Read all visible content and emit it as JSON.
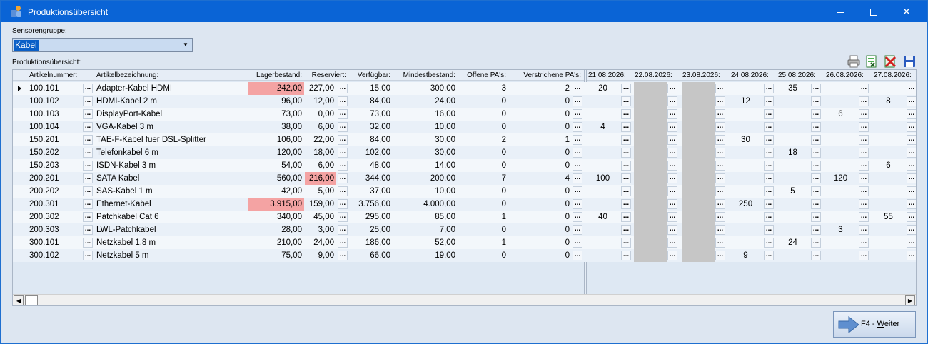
{
  "window": {
    "title": "Produktionsübersicht",
    "icons": [
      "app-icon",
      "minimize-icon",
      "maximize-icon",
      "close-icon"
    ]
  },
  "sensor_group": {
    "label": "Sensorengruppe:",
    "value": "Kabel"
  },
  "overview": {
    "label": "Produktionsübersicht:"
  },
  "toolbar": {
    "icons": [
      "print-icon",
      "excel-export-icon",
      "excel-delete-icon",
      "save-icon"
    ]
  },
  "grid": {
    "columns": [
      "Artikelnummer:",
      "Artikelbezeichnung:",
      "Lagerbestand:",
      "Reserviert:",
      "Verfügbar:",
      "Mindestbestand:",
      "Offene PA's:",
      "Verstrichene PA's:"
    ],
    "date_columns": [
      "21.08.2026:",
      "22.08.2026:",
      "23.08.2026:",
      "24.08.2026:",
      "25.08.2026:",
      "26.08.2026:",
      "27.08.2026:"
    ],
    "dots": "...",
    "rows": [
      {
        "nr": "100.101",
        "name": "Adapter-Kabel HDMI",
        "lager": "242,00",
        "res": "227,00",
        "verf": "15,00",
        "mind": "300,00",
        "offen": "3",
        "verstr": "2",
        "d": [
          "20",
          "",
          "",
          "",
          "35",
          "",
          ""
        ],
        "hl_lager": true,
        "hl_res": false
      },
      {
        "nr": "100.102",
        "name": "HDMI-Kabel 2 m",
        "lager": "96,00",
        "res": "12,00",
        "verf": "84,00",
        "mind": "24,00",
        "offen": "0",
        "verstr": "0",
        "d": [
          "",
          "",
          "",
          "12",
          "",
          "",
          "8"
        ],
        "hl_lager": false,
        "hl_res": false
      },
      {
        "nr": "100.103",
        "name": "DisplayPort-Kabel",
        "lager": "73,00",
        "res": "0,00",
        "verf": "73,00",
        "mind": "16,00",
        "offen": "0",
        "verstr": "0",
        "d": [
          "",
          "",
          "",
          "",
          "",
          "6",
          ""
        ],
        "hl_lager": false,
        "hl_res": false
      },
      {
        "nr": "100.104",
        "name": "VGA-Kabel 3 m",
        "lager": "38,00",
        "res": "6,00",
        "verf": "32,00",
        "mind": "10,00",
        "offen": "0",
        "verstr": "0",
        "d": [
          "4",
          "",
          "",
          "",
          "",
          "",
          ""
        ],
        "hl_lager": false,
        "hl_res": false
      },
      {
        "nr": "150.201",
        "name": "TAE-F-Kabel fuer DSL-Splitter",
        "lager": "106,00",
        "res": "22,00",
        "verf": "84,00",
        "mind": "30,00",
        "offen": "2",
        "verstr": "1",
        "d": [
          "",
          "",
          "",
          "30",
          "",
          "",
          ""
        ],
        "hl_lager": false,
        "hl_res": false
      },
      {
        "nr": "150.202",
        "name": "Telefonkabel 6 m",
        "lager": "120,00",
        "res": "18,00",
        "verf": "102,00",
        "mind": "30,00",
        "offen": "0",
        "verstr": "0",
        "d": [
          "",
          "",
          "",
          "",
          "18",
          "",
          ""
        ],
        "hl_lager": false,
        "hl_res": false
      },
      {
        "nr": "150.203",
        "name": "ISDN-Kabel 3 m",
        "lager": "54,00",
        "res": "6,00",
        "verf": "48,00",
        "mind": "14,00",
        "offen": "0",
        "verstr": "0",
        "d": [
          "",
          "",
          "",
          "",
          "",
          "",
          "6"
        ],
        "hl_lager": false,
        "hl_res": false
      },
      {
        "nr": "200.201",
        "name": "SATA Kabel",
        "lager": "560,00",
        "res": "216,00",
        "verf": "344,00",
        "mind": "200,00",
        "offen": "7",
        "verstr": "4",
        "d": [
          "100",
          "",
          "",
          "",
          "",
          "120",
          ""
        ],
        "hl_lager": false,
        "hl_res": true
      },
      {
        "nr": "200.202",
        "name": "SAS-Kabel 1 m",
        "lager": "42,00",
        "res": "5,00",
        "verf": "37,00",
        "mind": "10,00",
        "offen": "0",
        "verstr": "0",
        "d": [
          "",
          "",
          "",
          "",
          "5",
          "",
          ""
        ],
        "hl_lager": false,
        "hl_res": false
      },
      {
        "nr": "200.301",
        "name": "Ethernet-Kabel",
        "lager": "3.915,00",
        "res": "159,00",
        "verf": "3.756,00",
        "mind": "4.000,00",
        "offen": "0",
        "verstr": "0",
        "d": [
          "",
          "",
          "",
          "250",
          "",
          "",
          ""
        ],
        "hl_lager": true,
        "hl_res": false
      },
      {
        "nr": "200.302",
        "name": "Patchkabel Cat 6",
        "lager": "340,00",
        "res": "45,00",
        "verf": "295,00",
        "mind": "85,00",
        "offen": "1",
        "verstr": "0",
        "d": [
          "40",
          "",
          "",
          "",
          "",
          "",
          "55"
        ],
        "hl_lager": false,
        "hl_res": false
      },
      {
        "nr": "200.303",
        "name": "LWL-Patchkabel",
        "lager": "28,00",
        "res": "3,00",
        "verf": "25,00",
        "mind": "7,00",
        "offen": "0",
        "verstr": "0",
        "d": [
          "",
          "",
          "",
          "",
          "",
          "3",
          ""
        ],
        "hl_lager": false,
        "hl_res": false
      },
      {
        "nr": "300.101",
        "name": "Netzkabel 1,8 m",
        "lager": "210,00",
        "res": "24,00",
        "verf": "186,00",
        "mind": "52,00",
        "offen": "1",
        "verstr": "0",
        "d": [
          "",
          "",
          "",
          "",
          "24",
          "",
          ""
        ],
        "hl_lager": false,
        "hl_res": false
      },
      {
        "nr": "300.102",
        "name": "Netzkabel 5 m",
        "lager": "75,00",
        "res": "9,00",
        "verf": "66,00",
        "mind": "19,00",
        "offen": "0",
        "verstr": "0",
        "d": [
          "",
          "",
          "",
          "9",
          "",
          "",
          ""
        ],
        "hl_lager": false,
        "hl_res": false
      }
    ]
  },
  "buttons": {
    "next_prefix": "F4 - ",
    "next_mnemonic": "W",
    "next_rest": "eiter"
  },
  "colors": {
    "titlebar": "#0a64d6",
    "highlight": "#f4a3a3",
    "blocked_day": "#c6c6c6"
  }
}
